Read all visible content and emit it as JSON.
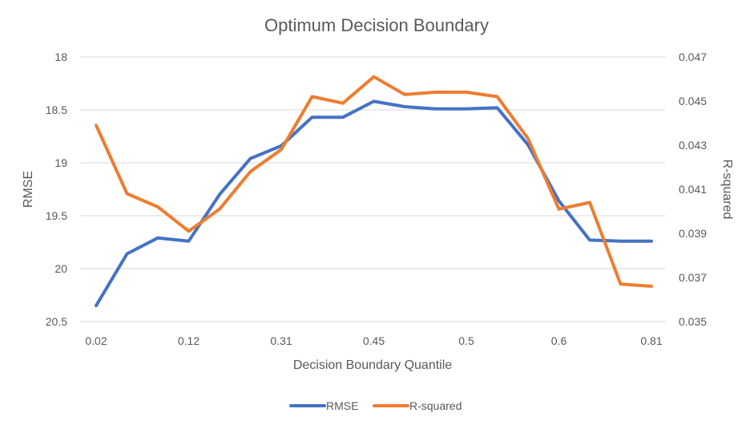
{
  "chart_data": {
    "type": "line",
    "title": "Optimum Decision Boundary",
    "xlabel": "Decision Boundary Quantile",
    "ylabel": "RMSE",
    "y2label": "R-squared",
    "x_tick_labels": [
      "0.02",
      "0.12",
      "0.31",
      "0.45",
      "0.5",
      "0.6",
      "0.81"
    ],
    "y_left": {
      "min": 18,
      "max": 20.5,
      "inverted": true,
      "ticks": [
        "18",
        "18.5",
        "19",
        "19.5",
        "20",
        "20.5"
      ]
    },
    "y_right": {
      "min": 0.035,
      "max": 0.047,
      "ticks": [
        "0.047",
        "0.045",
        "0.043",
        "0.041",
        "0.039",
        "0.037",
        "0.035"
      ]
    },
    "grid": true,
    "legend_position": "bottom",
    "series": [
      {
        "name": "RMSE",
        "axis": "left",
        "color": "#4472C4",
        "values": [
          20.35,
          19.86,
          19.71,
          19.74,
          19.3,
          18.96,
          18.84,
          18.57,
          18.57,
          18.42,
          18.47,
          18.49,
          18.49,
          18.48,
          18.83,
          19.36,
          19.73,
          19.74,
          19.74
        ]
      },
      {
        "name": "R-squared",
        "axis": "right",
        "color": "#ED7D31",
        "values": [
          0.0439,
          0.0408,
          0.0402,
          0.0391,
          0.0401,
          0.0418,
          0.0428,
          0.0452,
          0.0449,
          0.0461,
          0.0453,
          0.0454,
          0.0454,
          0.0452,
          0.0433,
          0.0401,
          0.0404,
          0.0367,
          0.0366
        ]
      }
    ]
  }
}
